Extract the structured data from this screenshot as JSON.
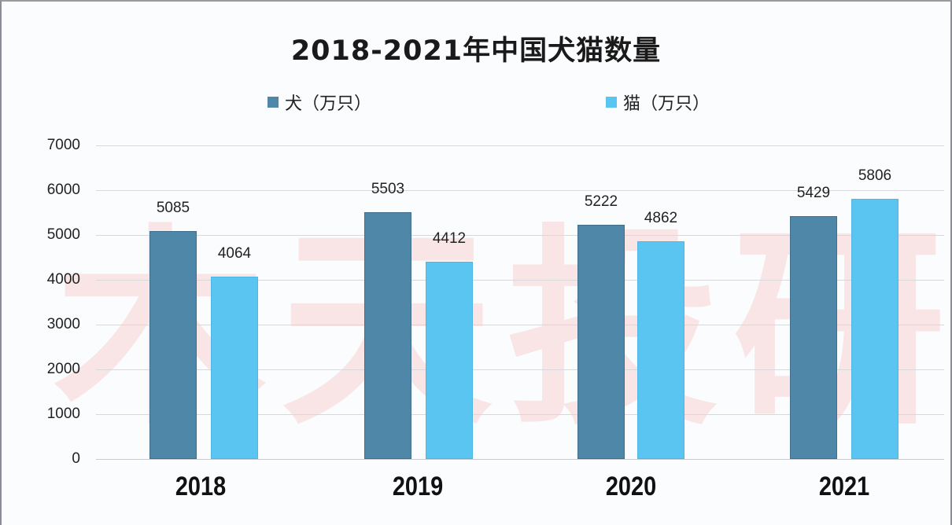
{
  "chart_data": {
    "type": "bar",
    "title": "2018-2021年中国犬猫数量",
    "categories": [
      "2018",
      "2019",
      "2020",
      "2021"
    ],
    "series": [
      {
        "name": "犬（万只）",
        "values": [
          5085,
          5503,
          5222,
          5429
        ],
        "color": "#4e87a8"
      },
      {
        "name": "猫（万只）",
        "values": [
          4064,
          4412,
          4862,
          5806
        ],
        "color": "#5bc5f2"
      }
    ],
    "xlabel": "",
    "ylabel": "",
    "ylim": [
      0,
      7000
    ],
    "yticks": [
      "0",
      "1000",
      "2000",
      "3000",
      "4000",
      "5000",
      "6000",
      "7000"
    ],
    "grid": true,
    "legend_position": "top",
    "data_labels": true
  },
  "title": "2018-2021年中国犬猫数量",
  "legend": {
    "dog": {
      "label": "犬（万只）",
      "color": "#4e87a8"
    },
    "cat": {
      "label": "猫（万只）",
      "color": "#5bc5f2"
    }
  },
  "axis": {
    "y_ticks": [
      "0",
      "1000",
      "2000",
      "3000",
      "4000",
      "5000",
      "6000",
      "7000"
    ],
    "x_labels": [
      "2018",
      "2019",
      "2020",
      "2021"
    ]
  },
  "data_labels": {
    "dog": [
      "5085",
      "5503",
      "5222",
      "5429"
    ],
    "cat": [
      "4064",
      "4412",
      "4862",
      "5806"
    ]
  },
  "watermark": "木天投研"
}
